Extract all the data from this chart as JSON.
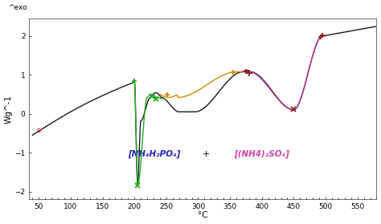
{
  "exo_label": "^exo",
  "ylabel": "Wg^-1",
  "xlabel": "°C",
  "xlim": [
    35,
    580
  ],
  "ylim": [
    -2.2,
    2.45
  ],
  "xticks": [
    50,
    100,
    150,
    200,
    250,
    300,
    350,
    400,
    450,
    500,
    550
  ],
  "yticks": [
    -2,
    -1,
    0,
    1,
    2
  ],
  "background_color": "#ffffff",
  "legend_text1": "[NH₄H₂PO₄]",
  "legend_color1": "#2222bb",
  "legend_text2": "+",
  "legend_text3": "[(NH4)₂SO₄]",
  "legend_color3": "#cc44aa",
  "main_line_color": "#1a1a1a",
  "green_line_color": "#22aa22",
  "orange_line_color": "#cc8800",
  "pink_line_color": "#bb3399"
}
